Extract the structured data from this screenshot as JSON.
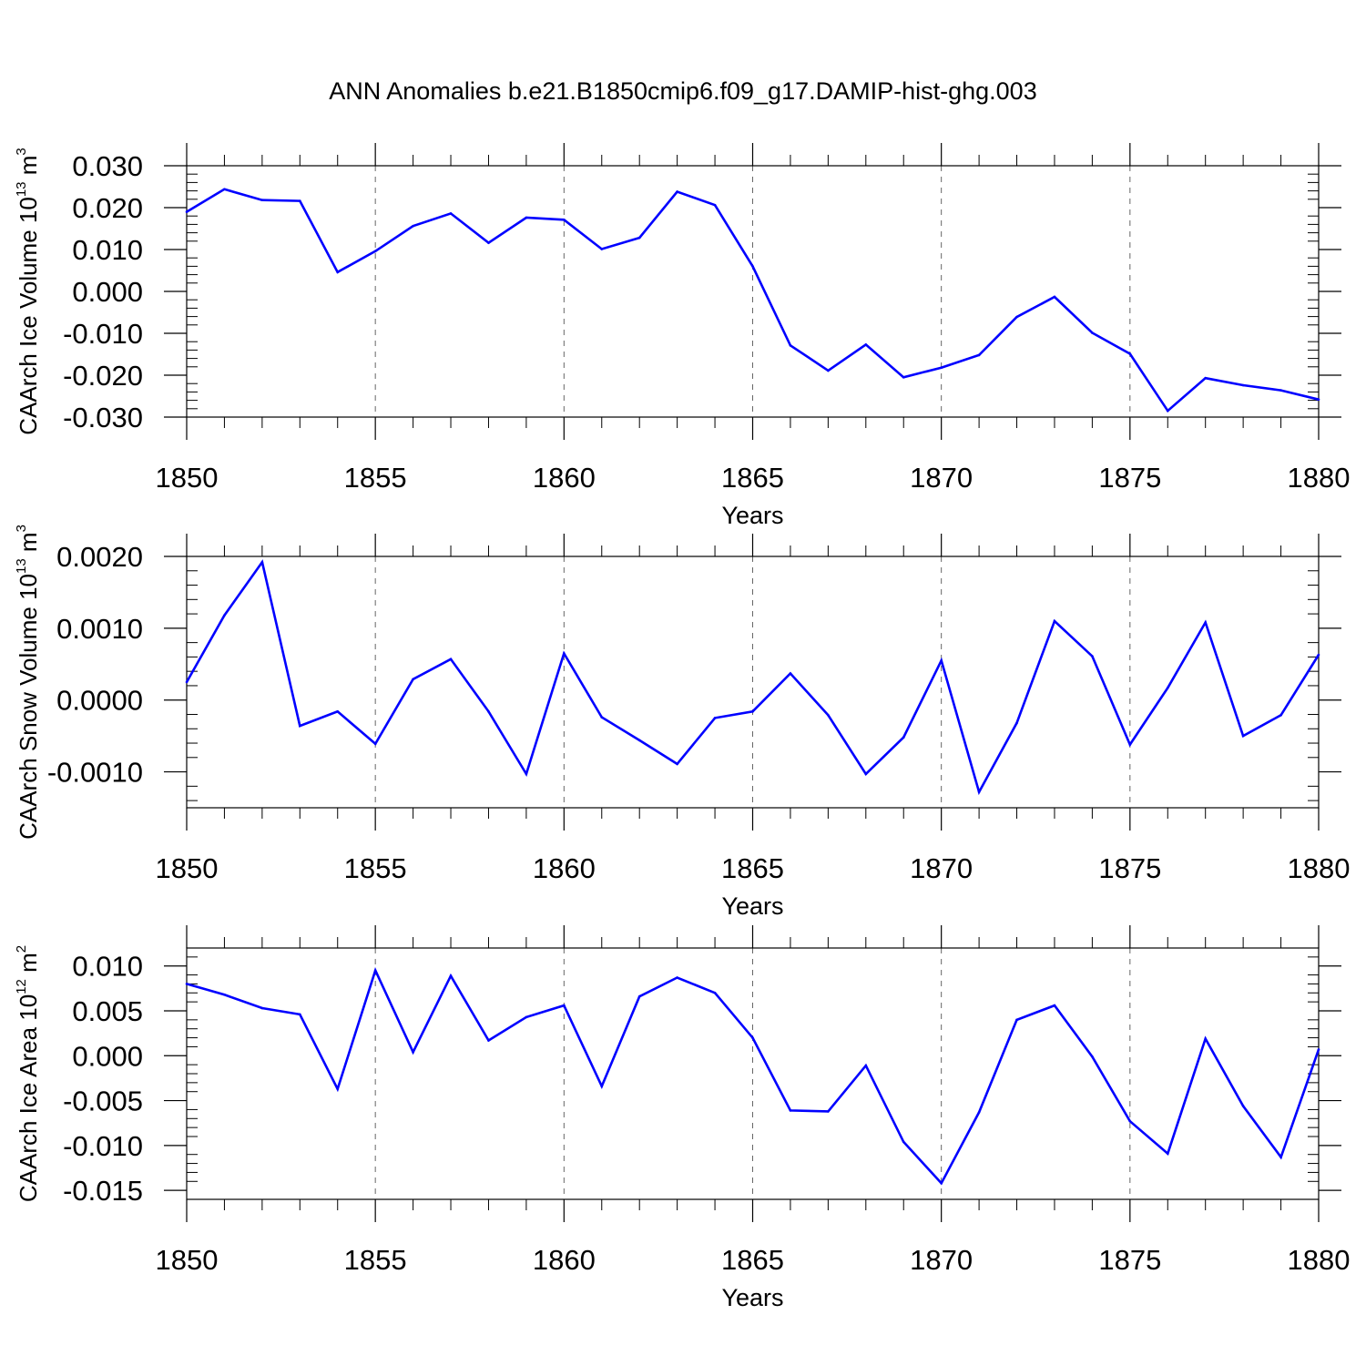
{
  "title": "ANN Anomalies b.e21.B1850cmip6.f09_g17.DAMIP-hist-ghg.003",
  "colors": {
    "line": "#0000ff",
    "axis": "#000000",
    "grid": "#666666"
  },
  "chart_data": [
    {
      "type": "line",
      "ylabel": {
        "text": "CAArch Ice Volume 10",
        "exp": "13",
        "unit": " m",
        "unit_exp": "3"
      },
      "xlabel": "Years",
      "xlim": [
        1850,
        1880
      ],
      "ylim": [
        -0.03,
        0.03
      ],
      "yticks": [
        0.03,
        0.02,
        0.01,
        0.0,
        -0.01,
        -0.02,
        -0.03
      ],
      "ytick_labels": [
        "0.030",
        "0.020",
        "0.010",
        "0.000",
        "-0.010",
        "-0.020",
        "-0.030"
      ],
      "xticks": [
        1850,
        1855,
        1860,
        1865,
        1870,
        1875,
        1880
      ],
      "xtick_labels": [
        "1850",
        "1855",
        "1860",
        "1865",
        "1870",
        "1875",
        "1880"
      ],
      "grid": "vertical dashed at major x ticks",
      "x": [
        1850,
        1851,
        1852,
        1853,
        1854,
        1855,
        1856,
        1857,
        1858,
        1859,
        1860,
        1861,
        1862,
        1863,
        1864,
        1865,
        1866,
        1867,
        1868,
        1869,
        1870,
        1871,
        1872,
        1873,
        1874,
        1875,
        1876,
        1877,
        1878,
        1879,
        1880
      ],
      "values": [
        0.019,
        0.0244,
        0.0218,
        0.0216,
        0.0046,
        0.0096,
        0.0156,
        0.0186,
        0.0116,
        0.0176,
        0.0171,
        0.0101,
        0.0128,
        0.0238,
        0.0206,
        0.006,
        -0.0129,
        -0.0189,
        -0.0127,
        -0.0205,
        -0.0182,
        -0.0152,
        -0.0061,
        -0.0013,
        -0.0099,
        -0.0149,
        -0.0285,
        -0.0207,
        -0.0224,
        -0.0236,
        -0.0258
      ]
    },
    {
      "type": "line",
      "ylabel": {
        "text": "CAArch Snow Volume 10",
        "exp": "13",
        "unit": " m",
        "unit_exp": "3"
      },
      "xlabel": "Years",
      "xlim": [
        1850,
        1880
      ],
      "ylim": [
        -0.0015,
        0.002
      ],
      "yticks": [
        0.002,
        0.001,
        0.0,
        -0.001
      ],
      "ytick_labels": [
        "0.0020",
        "0.0010",
        "0.0000",
        "-0.0010"
      ],
      "xticks": [
        1850,
        1855,
        1860,
        1865,
        1870,
        1875,
        1880
      ],
      "xtick_labels": [
        "1850",
        "1855",
        "1860",
        "1865",
        "1870",
        "1875",
        "1880"
      ],
      "grid": "vertical dashed at major x ticks",
      "x": [
        1850,
        1851,
        1852,
        1853,
        1854,
        1855,
        1856,
        1857,
        1858,
        1859,
        1860,
        1861,
        1862,
        1863,
        1864,
        1865,
        1866,
        1867,
        1868,
        1869,
        1870,
        1871,
        1872,
        1873,
        1874,
        1875,
        1876,
        1877,
        1878,
        1879,
        1880
      ],
      "values": [
        0.00025,
        0.00118,
        0.00192,
        -0.00036,
        -0.00016,
        -0.00061,
        0.00029,
        0.00057,
        -0.00016,
        -0.00103,
        0.00065,
        -0.00024,
        -0.00056,
        -0.00089,
        -0.00025,
        -0.00016,
        0.00037,
        -0.00021,
        -0.00103,
        -0.00052,
        0.00055,
        -0.00128,
        -0.00032,
        0.0011,
        0.00061,
        -0.00062,
        0.00017,
        0.00108,
        -0.0005,
        -0.00021,
        0.00063
      ]
    },
    {
      "type": "line",
      "ylabel": {
        "text": "CAArch Ice Area 10",
        "exp": "12",
        "unit": " m",
        "unit_exp": "2"
      },
      "xlabel": "Years",
      "xlim": [
        1850,
        1880
      ],
      "ylim": [
        -0.016,
        0.012
      ],
      "yticks": [
        0.01,
        0.005,
        0.0,
        -0.005,
        -0.01,
        -0.015
      ],
      "ytick_labels": [
        "0.010",
        "0.005",
        "0.000",
        "-0.005",
        "-0.010",
        "-0.015"
      ],
      "xticks": [
        1850,
        1855,
        1860,
        1865,
        1870,
        1875,
        1880
      ],
      "xtick_labels": [
        "1850",
        "1855",
        "1860",
        "1865",
        "1870",
        "1875",
        "1880"
      ],
      "grid": "vertical dashed at major x ticks",
      "x": [
        1850,
        1851,
        1852,
        1853,
        1854,
        1855,
        1856,
        1857,
        1858,
        1859,
        1860,
        1861,
        1862,
        1863,
        1864,
        1865,
        1866,
        1867,
        1868,
        1869,
        1870,
        1871,
        1872,
        1873,
        1874,
        1875,
        1876,
        1877,
        1878,
        1879,
        1880
      ],
      "values": [
        0.008,
        0.0068,
        0.0053,
        0.0046,
        -0.0037,
        0.0095,
        0.0004,
        0.0089,
        0.0017,
        0.0043,
        0.0056,
        -0.0034,
        0.0066,
        0.0087,
        0.007,
        0.002,
        -0.0061,
        -0.0062,
        -0.0011,
        -0.0096,
        -0.0142,
        -0.0063,
        0.004,
        0.0056,
        -0.0001,
        -0.0073,
        -0.0109,
        0.0019,
        -0.0056,
        -0.0113,
        0.0007
      ]
    }
  ]
}
